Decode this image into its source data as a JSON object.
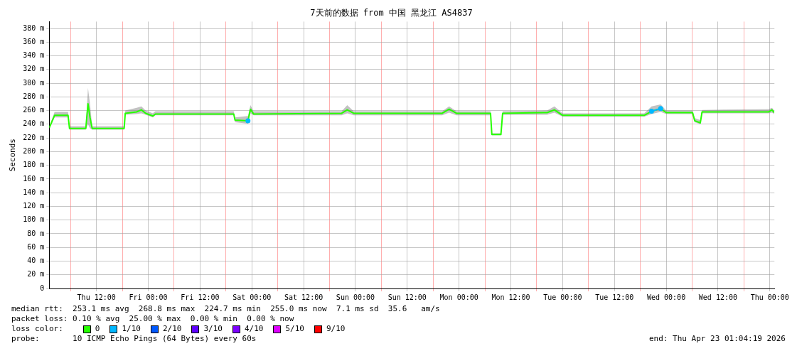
{
  "chart_data": {
    "type": "line",
    "title": "7天前的数据 from 中国 黑龙江 AS4837",
    "ylabel": "Seconds",
    "legend_title": "loss color:",
    "legend": "bottom",
    "grid": true,
    "line_style": "solid",
    "x": [
      "2026-04-16T01:05",
      "2026-04-16T02:18",
      "2026-04-16T05:25",
      "2026-04-16T05:45",
      "2026-04-16T09:32",
      "2026-04-16T10:02",
      "2026-04-16T10:30",
      "2026-04-16T11:00",
      "2026-04-16T18:25",
      "2026-04-16T18:40",
      "2026-04-16T21:18",
      "2026-04-16T22:24",
      "2026-04-16T23:24",
      "2026-04-17T01:04",
      "2026-04-17T01:40",
      "2026-04-17T19:48",
      "2026-04-17T20:06",
      "2026-04-17T23:06",
      "2026-04-17T23:40",
      "2026-04-18T00:24",
      "2026-04-18T20:48",
      "2026-04-18T22:06",
      "2026-04-18T23:36",
      "2026-04-19T20:06",
      "2026-04-19T21:42",
      "2026-04-19T23:24",
      "2026-04-20T07:18",
      "2026-04-20T07:36",
      "2026-04-20T09:42",
      "2026-04-20T10:06",
      "2026-04-20T20:24",
      "2026-04-20T22:06",
      "2026-04-21T00:00",
      "2026-04-21T18:54",
      "2026-04-21T20:36",
      "2026-04-21T22:42",
      "2026-04-22T00:00",
      "2026-04-22T06:06",
      "2026-04-22T06:36",
      "2026-04-22T07:54",
      "2026-04-22T08:18",
      "2026-04-22T23:42",
      "2026-04-23T00:30",
      "2026-04-23T01:00"
    ],
    "xlim": [
      "2026-04-16T01:04",
      "2026-04-23T01:04"
    ],
    "xticks": [
      {
        "value": "2026-04-16T06:00",
        "label": null
      },
      {
        "value": "2026-04-16T12:00",
        "label": "Thu 12:00"
      },
      {
        "value": "2026-04-16T18:00",
        "label": null
      },
      {
        "value": "2026-04-17T00:00",
        "label": "Fri 00:00"
      },
      {
        "value": "2026-04-17T06:00",
        "label": null
      },
      {
        "value": "2026-04-17T12:00",
        "label": "Fri 12:00"
      },
      {
        "value": "2026-04-17T18:00",
        "label": null
      },
      {
        "value": "2026-04-18T00:00",
        "label": "Sat 00:00"
      },
      {
        "value": "2026-04-18T06:00",
        "label": null
      },
      {
        "value": "2026-04-18T12:00",
        "label": "Sat 12:00"
      },
      {
        "value": "2026-04-18T18:00",
        "label": null
      },
      {
        "value": "2026-04-19T00:00",
        "label": "Sun 00:00"
      },
      {
        "value": "2026-04-19T06:00",
        "label": null
      },
      {
        "value": "2026-04-19T12:00",
        "label": "Sun 12:00"
      },
      {
        "value": "2026-04-19T18:00",
        "label": null
      },
      {
        "value": "2026-04-20T00:00",
        "label": "Mon 00:00"
      },
      {
        "value": "2026-04-20T06:00",
        "label": null
      },
      {
        "value": "2026-04-20T12:00",
        "label": "Mon 12:00"
      },
      {
        "value": "2026-04-20T18:00",
        "label": null
      },
      {
        "value": "2026-04-21T00:00",
        "label": "Tue 00:00"
      },
      {
        "value": "2026-04-21T06:00",
        "label": null
      },
      {
        "value": "2026-04-21T12:00",
        "label": "Tue 12:00"
      },
      {
        "value": "2026-04-21T18:00",
        "label": null
      },
      {
        "value": "2026-04-22T00:00",
        "label": "Wed 00:00"
      },
      {
        "value": "2026-04-22T06:00",
        "label": null
      },
      {
        "value": "2026-04-22T12:00",
        "label": "Wed 12:00"
      },
      {
        "value": "2026-04-22T18:00",
        "label": null
      },
      {
        "value": "2026-04-23T00:00",
        "label": "Thu 00:00"
      }
    ],
    "ylim": [
      0,
      390
    ],
    "yticks": [
      0,
      {
        "value": 20,
        "label": "20 m"
      },
      {
        "value": 40,
        "label": "40 m"
      },
      {
        "value": 60,
        "label": "60 m"
      },
      {
        "value": 80,
        "label": "80 m"
      },
      {
        "value": 100,
        "label": "100 m"
      },
      {
        "value": 120,
        "label": "120 m"
      },
      {
        "value": 140,
        "label": "140 m"
      },
      {
        "value": 160,
        "label": "160 m"
      },
      {
        "value": 180,
        "label": "180 m"
      },
      {
        "value": 200,
        "label": "200 m"
      },
      {
        "value": 220,
        "label": "220 m"
      },
      {
        "value": 240,
        "label": "240 m"
      },
      {
        "value": 260,
        "label": "260 m"
      },
      {
        "value": 280,
        "label": "280 m"
      },
      {
        "value": 300,
        "label": "300 m"
      },
      {
        "value": 320,
        "label": "320 m"
      },
      {
        "value": 340,
        "label": "340 m"
      },
      {
        "value": 360,
        "label": "360 m"
      },
      {
        "value": 380,
        "label": "380 m"
      }
    ],
    "series": [
      {
        "name": "0",
        "color": "#26ff00",
        "values": [
          235,
          253,
          253,
          234,
          234,
          270,
          250,
          234,
          234,
          256,
          258,
          261,
          256,
          252,
          255,
          255,
          246,
          245,
          262,
          255,
          256,
          261,
          256,
          256,
          262,
          256,
          256,
          225,
          225,
          256,
          257,
          261,
          253,
          253,
          259,
          263,
          257,
          257,
          245,
          242,
          258,
          258,
          261,
          257
        ],
        "lower": [
          233,
          250,
          250,
          232,
          232,
          240,
          234,
          232,
          232,
          254,
          255,
          256,
          254,
          250,
          253,
          253,
          243,
          241,
          256,
          253,
          253,
          256,
          253,
          253,
          257,
          253,
          253,
          224,
          224,
          254,
          254,
          257,
          251,
          251,
          255,
          258,
          255,
          255,
          243,
          240,
          256,
          256,
          257,
          255
        ],
        "upper": [
          237,
          258,
          258,
          237,
          237,
          293,
          270,
          237,
          237,
          260,
          264,
          266,
          260,
          256,
          259,
          259,
          250,
          252,
          268,
          259,
          259,
          268,
          259,
          259,
          266,
          259,
          259,
          227,
          227,
          259,
          260,
          266,
          256,
          256,
          266,
          269,
          260,
          260,
          249,
          246,
          261,
          262,
          264,
          260
        ]
      },
      {
        "name": "1/10",
        "color": "#00b8ff",
        "marker": "circle",
        "values": [
          null,
          null,
          null,
          null,
          null,
          null,
          null,
          null,
          null,
          null,
          null,
          null,
          null,
          null,
          null,
          null,
          null,
          245,
          null,
          null,
          null,
          null,
          null,
          null,
          null,
          null,
          null,
          null,
          null,
          null,
          null,
          null,
          null,
          null,
          259,
          263,
          null,
          null,
          null,
          null,
          null,
          null,
          null,
          null
        ]
      },
      {
        "name": "2/10",
        "color": "#0059ff",
        "marker": "circle",
        "values": [
          null,
          null,
          null,
          null,
          null,
          null,
          null,
          null,
          null,
          null,
          null,
          null,
          null,
          null,
          null,
          null,
          null,
          null,
          null,
          null,
          null,
          null,
          null,
          null,
          null,
          null,
          null,
          null,
          null,
          null,
          null,
          null,
          null,
          null,
          null,
          null,
          null,
          null,
          null,
          null,
          null,
          null,
          null,
          null
        ]
      },
      {
        "name": "3/10",
        "color": "#5e00ff",
        "marker": "circle",
        "values": [
          null,
          null,
          null,
          null,
          null,
          null,
          null,
          null,
          null,
          null,
          null,
          null,
          null,
          null,
          null,
          null,
          null,
          null,
          null,
          null,
          null,
          null,
          null,
          null,
          null,
          null,
          null,
          null,
          null,
          null,
          null,
          null,
          null,
          null,
          null,
          null,
          null,
          null,
          null,
          null,
          null,
          null,
          null,
          null
        ]
      },
      {
        "name": "4/10",
        "color": "#7e00ff",
        "marker": "circle",
        "values": [
          null,
          null,
          null,
          null,
          null,
          null,
          null,
          null,
          null,
          null,
          null,
          null,
          null,
          null,
          null,
          null,
          null,
          null,
          null,
          null,
          null,
          null,
          null,
          null,
          null,
          null,
          null,
          null,
          null,
          null,
          null,
          null,
          null,
          null,
          null,
          null,
          null,
          null,
          null,
          null,
          null,
          null,
          null,
          null
        ]
      },
      {
        "name": "5/10",
        "color": "#dd00ff",
        "marker": "circle",
        "values": [
          null,
          null,
          null,
          null,
          null,
          null,
          null,
          null,
          null,
          null,
          null,
          null,
          null,
          null,
          null,
          null,
          null,
          null,
          null,
          null,
          null,
          null,
          null,
          null,
          null,
          null,
          null,
          null,
          null,
          null,
          null,
          null,
          null,
          null,
          null,
          null,
          null,
          null,
          null,
          null,
          null,
          null,
          null,
          null
        ]
      },
      {
        "name": "9/10",
        "color": "#ff0000",
        "marker": "circle",
        "values": [
          null,
          null,
          null,
          null,
          null,
          null,
          null,
          null,
          null,
          null,
          null,
          null,
          null,
          null,
          null,
          null,
          null,
          null,
          null,
          null,
          null,
          null,
          null,
          null,
          null,
          null,
          null,
          null,
          null,
          null,
          null,
          null,
          null,
          null,
          null,
          null,
          null,
          null,
          null,
          null,
          null,
          null,
          null,
          null
        ]
      }
    ],
    "annotations": [
      "median rtt:  253.1 ms avg  268.8 ms max  224.7 ms min  255.0 ms now  7.1 ms sd  35.6   am/s",
      "packet loss: 0.10 % avg  25.00 % max  0.00 % min  0.00 % now",
      "probe:       10 ICMP Echo Pings (64 Bytes) every 60s",
      "end: Thu Apr 23 01:04:19 2026"
    ]
  }
}
